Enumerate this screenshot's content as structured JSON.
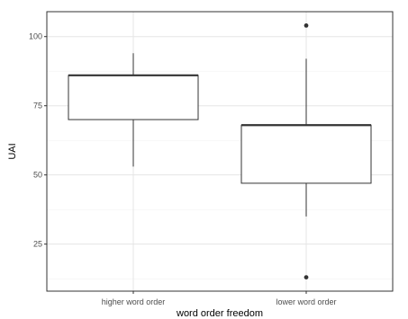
{
  "chart_data": {
    "type": "boxplot",
    "title": "",
    "xlabel": "word order freedom",
    "ylabel": "UAI",
    "ylim": [
      8,
      109
    ],
    "yticks": [
      25,
      50,
      75,
      100
    ],
    "grid": true,
    "legend": "none",
    "categories": [
      "higher word order",
      "lower word order"
    ],
    "boxes": [
      {
        "category": "higher word order",
        "whisker_low": 53,
        "q1": 70,
        "median": 86,
        "q3": 86,
        "whisker_high": 94,
        "outliers": []
      },
      {
        "category": "lower word order",
        "whisker_low": 35,
        "q1": 47,
        "median": 68,
        "q3": 68,
        "whisker_high": 92,
        "outliers": [
          104,
          13
        ]
      }
    ],
    "colors": {
      "panel_border": "#333333",
      "grid_major": "#e5e5e5",
      "grid_minor": "#f2f2f2",
      "box_fill": "#ffffff",
      "box_line": "#333333",
      "tick_text": "#4d4d4d",
      "tick_mark": "#333333",
      "title_text": "#000000"
    }
  }
}
